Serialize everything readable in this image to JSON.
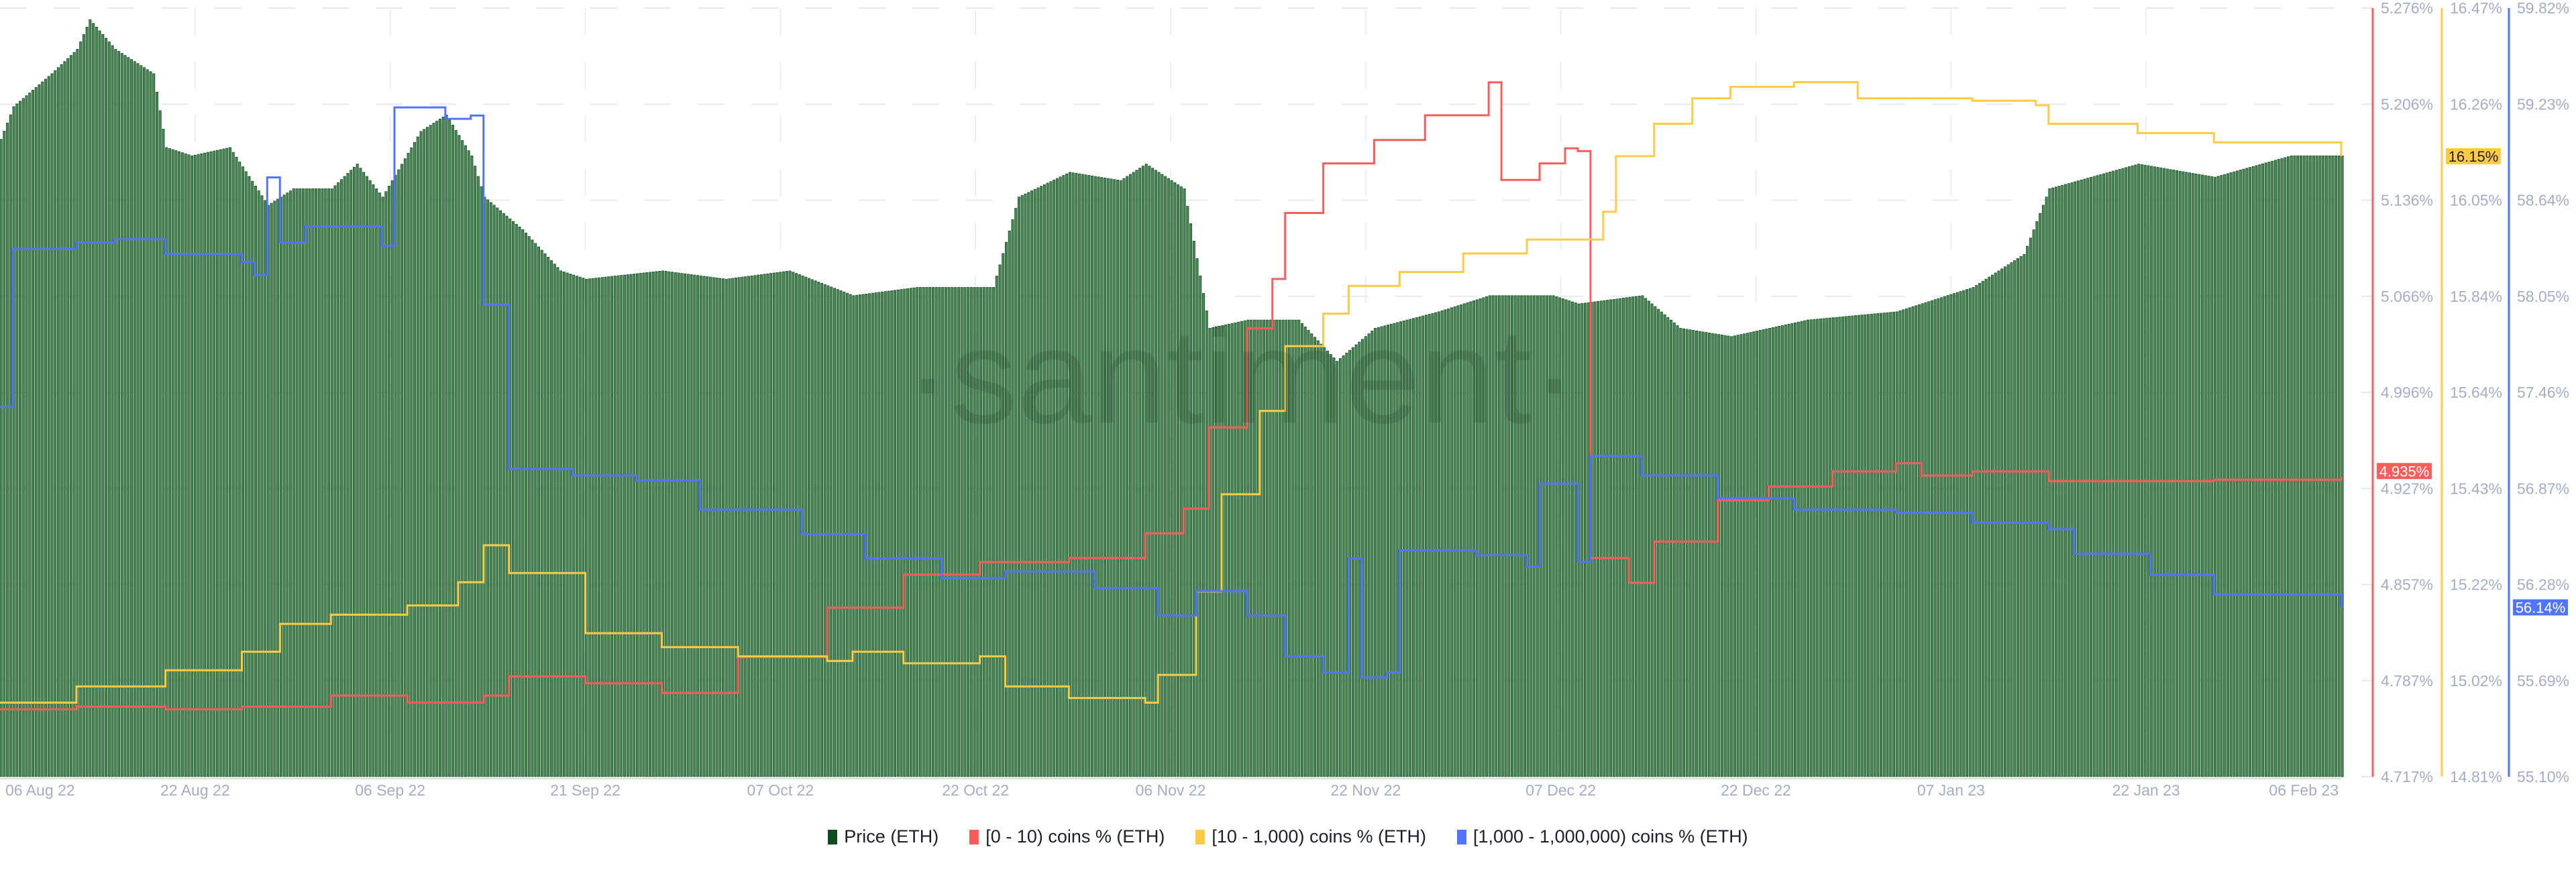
{
  "chart_data": {
    "type": "bar+line",
    "watermark": "·santiment·",
    "x_tick_labels": [
      "06 Aug 22",
      "22 Aug 22",
      "06 Sep 22",
      "21 Sep 22",
      "07 Oct 22",
      "22 Oct 22",
      "06 Nov 22",
      "22 Nov 22",
      "07 Dec 22",
      "22 Dec 22",
      "07 Jan 23",
      "22 Jan 23",
      "06 Feb 23"
    ],
    "xlim": [
      "2022-08-06",
      "2023-02-06"
    ],
    "grid": true,
    "legend_position": "bottom",
    "axes": [
      {
        "series": "red",
        "color": "#ff5b5b",
        "ylim": [
          4.717,
          5.276
        ],
        "ticks": [
          "5.276%",
          "5.206%",
          "5.136%",
          "5.066%",
          "4.996%",
          "4.927%",
          "4.857%",
          "4.787%",
          "4.717%"
        ],
        "current_label": "4.935%",
        "current": 4.935
      },
      {
        "series": "yellow",
        "color": "#ffcb47",
        "ylim": [
          14.81,
          16.47
        ],
        "ticks": [
          "16.47%",
          "16.26%",
          "16.05%",
          "15.84%",
          "15.64%",
          "15.43%",
          "15.22%",
          "15.02%",
          "14.81%"
        ],
        "current_label": "16.15%",
        "current": 16.15
      },
      {
        "series": "blue",
        "color": "#5275ff",
        "ylim": [
          55.1,
          59.82
        ],
        "ticks": [
          "59.82%",
          "59.23%",
          "58.64%",
          "58.05%",
          "57.46%",
          "56.87%",
          "56.28%",
          "55.69%",
          "55.10%"
        ],
        "current_label": "56.14%",
        "current": 56.14
      }
    ],
    "price": {
      "name": "Price (ETH)",
      "color": "#0f4d1f",
      "ylim": [
        0,
        2050
      ],
      "points": [
        [
          "2022-08-06",
          1700
        ],
        [
          "2022-08-07",
          1787
        ],
        [
          "2022-08-10",
          1875
        ],
        [
          "2022-08-12",
          1940
        ],
        [
          "2022-08-13",
          2019
        ],
        [
          "2022-08-15",
          1940
        ],
        [
          "2022-08-18",
          1875
        ],
        [
          "2022-08-19",
          1678
        ],
        [
          "2022-08-21",
          1656
        ],
        [
          "2022-08-24",
          1678
        ],
        [
          "2022-08-27",
          1524
        ],
        [
          "2022-08-29",
          1568
        ],
        [
          "2022-09-01",
          1568
        ],
        [
          "2022-09-03",
          1634
        ],
        [
          "2022-09-05",
          1546
        ],
        [
          "2022-09-08",
          1721
        ],
        [
          "2022-09-10",
          1765
        ],
        [
          "2022-09-12",
          1656
        ],
        [
          "2022-09-13",
          1546
        ],
        [
          "2022-09-16",
          1459
        ],
        [
          "2022-09-19",
          1349
        ],
        [
          "2022-09-21",
          1327
        ],
        [
          "2022-09-27",
          1349
        ],
        [
          "2022-10-02",
          1327
        ],
        [
          "2022-10-07",
          1349
        ],
        [
          "2022-10-12",
          1283
        ],
        [
          "2022-10-17",
          1305
        ],
        [
          "2022-10-23",
          1305
        ],
        [
          "2022-10-25",
          1546
        ],
        [
          "2022-10-29",
          1612
        ],
        [
          "2022-11-02",
          1590
        ],
        [
          "2022-11-04",
          1634
        ],
        [
          "2022-11-07",
          1568
        ],
        [
          "2022-11-09",
          1196
        ],
        [
          "2022-11-12",
          1218
        ],
        [
          "2022-11-16",
          1218
        ],
        [
          "2022-11-19",
          1108
        ],
        [
          "2022-11-22",
          1196
        ],
        [
          "2022-11-27",
          1240
        ],
        [
          "2022-12-01",
          1283
        ],
        [
          "2022-12-06",
          1283
        ],
        [
          "2022-12-08",
          1261
        ],
        [
          "2022-12-13",
          1283
        ],
        [
          "2022-12-16",
          1196
        ],
        [
          "2022-12-20",
          1174
        ],
        [
          "2022-12-26",
          1218
        ],
        [
          "2023-01-02",
          1240
        ],
        [
          "2023-01-08",
          1305
        ],
        [
          "2023-01-12",
          1393
        ],
        [
          "2023-01-14",
          1568
        ],
        [
          "2023-01-21",
          1634
        ],
        [
          "2023-01-27",
          1599
        ],
        [
          "2023-02-02",
          1656
        ],
        [
          "2023-02-06",
          1656
        ]
      ]
    },
    "series": [
      {
        "key": "red",
        "name": "[0 - 10) coins % (ETH)",
        "color": "#ff5b5b",
        "points": [
          [
            "2022-08-06",
            4.766
          ],
          [
            "2022-08-12",
            4.768
          ],
          [
            "2022-08-19",
            4.766
          ],
          [
            "2022-08-25",
            4.768
          ],
          [
            "2022-09-01",
            4.776
          ],
          [
            "2022-09-07",
            4.771
          ],
          [
            "2022-09-13",
            4.776
          ],
          [
            "2022-09-15",
            4.79
          ],
          [
            "2022-09-21",
            4.785
          ],
          [
            "2022-09-27",
            4.778
          ],
          [
            "2022-10-03",
            4.804
          ],
          [
            "2022-10-10",
            4.84
          ],
          [
            "2022-10-16",
            4.864
          ],
          [
            "2022-10-22",
            4.873
          ],
          [
            "2022-10-29",
            4.876
          ],
          [
            "2022-11-04",
            4.894
          ],
          [
            "2022-11-07",
            4.912
          ],
          [
            "2022-11-09",
            4.971
          ],
          [
            "2022-11-12",
            5.043
          ],
          [
            "2022-11-14",
            5.079
          ],
          [
            "2022-11-15",
            5.127
          ],
          [
            "2022-11-18",
            5.163
          ],
          [
            "2022-11-22",
            5.18
          ],
          [
            "2022-11-26",
            5.198
          ],
          [
            "2022-12-01",
            5.222
          ],
          [
            "2022-12-02",
            5.151
          ],
          [
            "2022-12-05",
            5.163
          ],
          [
            "2022-12-07",
            5.174
          ],
          [
            "2022-12-08",
            5.172
          ],
          [
            "2022-12-09",
            4.876
          ],
          [
            "2022-12-12",
            4.858
          ],
          [
            "2022-12-14",
            4.888
          ],
          [
            "2022-12-19",
            4.918
          ],
          [
            "2022-12-23",
            4.928
          ],
          [
            "2022-12-28",
            4.939
          ],
          [
            "2023-01-02",
            4.945
          ],
          [
            "2023-01-04",
            4.936
          ],
          [
            "2023-01-08",
            4.939
          ],
          [
            "2023-01-14",
            4.932
          ],
          [
            "2023-01-21",
            4.932
          ],
          [
            "2023-01-27",
            4.933
          ],
          [
            "2023-02-06",
            4.935
          ]
        ]
      },
      {
        "key": "yellow",
        "name": "[10 - 1,000) coins % (ETH)",
        "color": "#ffcb47",
        "points": [
          [
            "2022-08-06",
            14.97
          ],
          [
            "2022-08-12",
            15.005
          ],
          [
            "2022-08-19",
            15.04
          ],
          [
            "2022-08-25",
            15.08
          ],
          [
            "2022-08-28",
            15.14
          ],
          [
            "2022-09-01",
            15.16
          ],
          [
            "2022-09-07",
            15.18
          ],
          [
            "2022-09-11",
            15.23
          ],
          [
            "2022-09-13",
            15.31
          ],
          [
            "2022-09-15",
            15.25
          ],
          [
            "2022-09-21",
            15.12
          ],
          [
            "2022-09-27",
            15.09
          ],
          [
            "2022-10-03",
            15.07
          ],
          [
            "2022-10-10",
            15.06
          ],
          [
            "2022-10-12",
            15.08
          ],
          [
            "2022-10-16",
            15.055
          ],
          [
            "2022-10-22",
            15.07
          ],
          [
            "2022-10-24",
            15.005
          ],
          [
            "2022-10-29",
            14.98
          ],
          [
            "2022-11-04",
            14.97
          ],
          [
            "2022-11-05",
            15.03
          ],
          [
            "2022-11-08",
            15.21
          ],
          [
            "2022-11-10",
            15.42
          ],
          [
            "2022-11-13",
            15.6
          ],
          [
            "2022-11-15",
            15.74
          ],
          [
            "2022-11-18",
            15.81
          ],
          [
            "2022-11-20",
            15.87
          ],
          [
            "2022-11-24",
            15.9
          ],
          [
            "2022-11-29",
            15.94
          ],
          [
            "2022-12-04",
            15.97
          ],
          [
            "2022-12-10",
            16.03
          ],
          [
            "2022-12-11",
            16.15
          ],
          [
            "2022-12-14",
            16.22
          ],
          [
            "2022-12-17",
            16.275
          ],
          [
            "2022-12-20",
            16.3
          ],
          [
            "2022-12-25",
            16.31
          ],
          [
            "2022-12-30",
            16.275
          ],
          [
            "2023-01-08",
            16.27
          ],
          [
            "2023-01-13",
            16.26
          ],
          [
            "2023-01-14",
            16.22
          ],
          [
            "2023-01-21",
            16.2
          ],
          [
            "2023-01-27",
            16.18
          ],
          [
            "2023-02-06",
            16.15
          ]
        ]
      },
      {
        "key": "blue",
        "name": "[1,000 - 1,000,000) coins % (ETH)",
        "color": "#5275ff",
        "points": [
          [
            "2022-08-06",
            57.37
          ],
          [
            "2022-08-07",
            58.34
          ],
          [
            "2022-08-12",
            58.38
          ],
          [
            "2022-08-15",
            58.4
          ],
          [
            "2022-08-19",
            58.31
          ],
          [
            "2022-08-25",
            58.26
          ],
          [
            "2022-08-26",
            58.18
          ],
          [
            "2022-08-27",
            58.78
          ],
          [
            "2022-08-28",
            58.38
          ],
          [
            "2022-08-30",
            58.48
          ],
          [
            "2022-09-05",
            58.36
          ],
          [
            "2022-09-06",
            59.21
          ],
          [
            "2022-09-10",
            59.14
          ],
          [
            "2022-09-12",
            59.16
          ],
          [
            "2022-09-13",
            58.0
          ],
          [
            "2022-09-15",
            56.99
          ],
          [
            "2022-09-20",
            56.95
          ],
          [
            "2022-09-25",
            56.92
          ],
          [
            "2022-09-30",
            56.74
          ],
          [
            "2022-10-08",
            56.59
          ],
          [
            "2022-10-13",
            56.44
          ],
          [
            "2022-10-19",
            56.32
          ],
          [
            "2022-10-24",
            56.36
          ],
          [
            "2022-10-31",
            56.26
          ],
          [
            "2022-11-05",
            56.09
          ],
          [
            "2022-11-08",
            56.24
          ],
          [
            "2022-11-12",
            56.09
          ],
          [
            "2022-11-15",
            55.84
          ],
          [
            "2022-11-18",
            55.74
          ],
          [
            "2022-11-20",
            56.44
          ],
          [
            "2022-11-21",
            55.71
          ],
          [
            "2022-11-23",
            55.74
          ],
          [
            "2022-11-24",
            56.49
          ],
          [
            "2022-11-30",
            56.46
          ],
          [
            "2022-12-04",
            56.39
          ],
          [
            "2022-12-05",
            56.9
          ],
          [
            "2022-12-08",
            56.42
          ],
          [
            "2022-12-09",
            57.07
          ],
          [
            "2022-12-13",
            56.95
          ],
          [
            "2022-12-19",
            56.81
          ],
          [
            "2022-12-25",
            56.74
          ],
          [
            "2023-01-02",
            56.72
          ],
          [
            "2023-01-08",
            56.66
          ],
          [
            "2023-01-14",
            56.62
          ],
          [
            "2023-01-16",
            56.47
          ],
          [
            "2023-01-22",
            56.34
          ],
          [
            "2023-01-27",
            56.22
          ],
          [
            "2023-02-06",
            56.14
          ]
        ]
      }
    ]
  },
  "legend": {
    "items": [
      {
        "label": "Price (ETH)",
        "color": "#0f4d1f"
      },
      {
        "label": "[0 - 10) coins % (ETH)",
        "color": "#ff5b5b"
      },
      {
        "label": "[10 - 1,000) coins % (ETH)",
        "color": "#ffcb47"
      },
      {
        "label": "[1,000 - 1,000,000) coins % (ETH)",
        "color": "#5275ff"
      }
    ]
  }
}
